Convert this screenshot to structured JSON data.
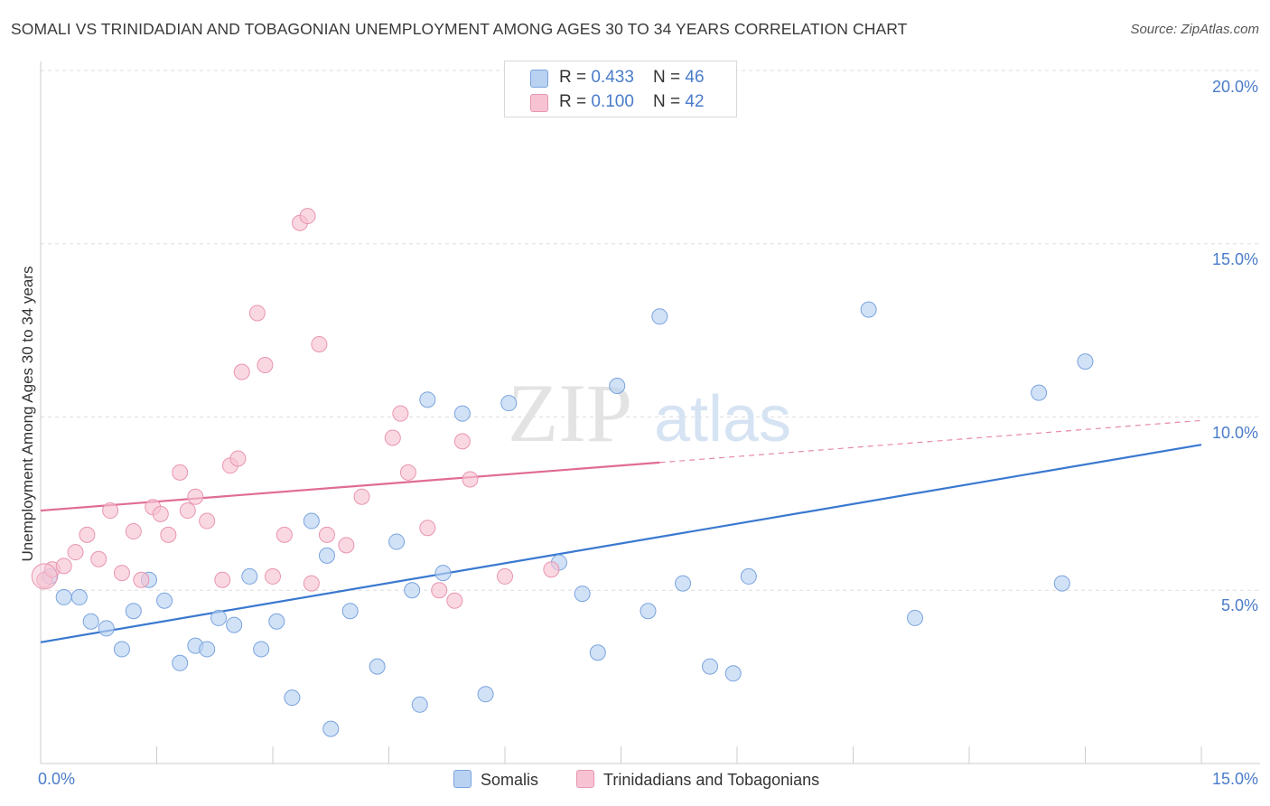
{
  "title": "SOMALI VS TRINIDADIAN AND TOBAGONIAN UNEMPLOYMENT AMONG AGES 30 TO 34 YEARS CORRELATION CHART",
  "source": "Source: ZipAtlas.com",
  "watermark": {
    "zip": "ZIP",
    "atlas": "atlas"
  },
  "legend": {
    "rows": [
      {
        "r_label": "R = ",
        "r_value": "0.433",
        "n_label": "N = ",
        "n_value": "46"
      },
      {
        "r_label": "R = ",
        "r_value": "0.100",
        "n_label": "N = ",
        "n_value": "42"
      }
    ]
  },
  "bottom_legend": {
    "somalis": "Somalis",
    "trinidadians": "Trinidadians and Tobagonians"
  },
  "colors": {
    "blue_fill": "#b9d2f2",
    "blue_stroke": "#7aa3de",
    "blue_line": "#3a78d0",
    "pink_fill": "#f7c3d3",
    "pink_stroke": "#e895b0",
    "pink_line": "#e06c95",
    "tick_text": "#4a7cc9",
    "grid": "#dddddd"
  },
  "chart_data": {
    "type": "scatter",
    "title": "SOMALI VS TRINIDADIAN AND TOBAGONIAN UNEMPLOYMENT AMONG AGES 30 TO 34 YEARS CORRELATION CHART",
    "xlabel": "",
    "ylabel": "Unemployment Among Ages 30 to 34 years",
    "xlim": [
      0,
      15
    ],
    "ylim": [
      0,
      20
    ],
    "x_tick_labels": [
      "0.0%",
      "15.0%"
    ],
    "y_ticks": [
      5,
      10,
      15,
      20
    ],
    "y_tick_labels": [
      "5.0%",
      "10.0%",
      "15.0%",
      "20.0%"
    ],
    "grid": true,
    "legend_position": "top-center",
    "series": [
      {
        "name": "Somalis",
        "r": 0.433,
        "n": 46,
        "trend": {
          "x0": 0,
          "y0": 3.5,
          "x1": 15,
          "y1": 9.2,
          "dashed_from": null
        },
        "points": [
          [
            0.12,
            5.4
          ],
          [
            0.3,
            4.8
          ],
          [
            0.5,
            4.8
          ],
          [
            0.65,
            4.1
          ],
          [
            0.85,
            3.9
          ],
          [
            1.05,
            3.3
          ],
          [
            1.2,
            4.4
          ],
          [
            1.4,
            5.3
          ],
          [
            1.6,
            4.7
          ],
          [
            1.8,
            2.9
          ],
          [
            2.0,
            3.4
          ],
          [
            2.15,
            3.3
          ],
          [
            2.3,
            4.2
          ],
          [
            2.5,
            4.0
          ],
          [
            2.7,
            5.4
          ],
          [
            2.85,
            3.3
          ],
          [
            3.05,
            4.1
          ],
          [
            3.25,
            1.9
          ],
          [
            3.5,
            7.0
          ],
          [
            3.7,
            6.0
          ],
          [
            3.75,
            1.0
          ],
          [
            4.0,
            4.4
          ],
          [
            4.35,
            2.8
          ],
          [
            4.6,
            6.4
          ],
          [
            4.8,
            5.0
          ],
          [
            4.9,
            1.7
          ],
          [
            5.0,
            10.5
          ],
          [
            5.2,
            5.5
          ],
          [
            5.45,
            10.1
          ],
          [
            5.75,
            2.0
          ],
          [
            6.05,
            10.4
          ],
          [
            6.7,
            5.8
          ],
          [
            7.0,
            4.9
          ],
          [
            7.2,
            3.2
          ],
          [
            7.45,
            10.9
          ],
          [
            7.85,
            4.4
          ],
          [
            8.0,
            12.9
          ],
          [
            8.3,
            5.2
          ],
          [
            8.65,
            2.8
          ],
          [
            8.95,
            2.6
          ],
          [
            9.15,
            5.4
          ],
          [
            10.7,
            13.1
          ],
          [
            11.3,
            4.2
          ],
          [
            12.9,
            10.7
          ],
          [
            13.2,
            5.2
          ],
          [
            13.5,
            11.6
          ]
        ]
      },
      {
        "name": "Trinidadians and Tobagonians",
        "r": 0.1,
        "n": 42,
        "trend": {
          "x0": 0,
          "y0": 7.3,
          "x1": 15,
          "y1": 9.9,
          "dashed_from": 8.0
        },
        "points": [
          [
            0.05,
            5.3
          ],
          [
            0.15,
            5.6
          ],
          [
            0.3,
            5.7
          ],
          [
            0.45,
            6.1
          ],
          [
            0.6,
            6.6
          ],
          [
            0.75,
            5.9
          ],
          [
            0.9,
            7.3
          ],
          [
            1.05,
            5.5
          ],
          [
            1.2,
            6.7
          ],
          [
            1.3,
            5.3
          ],
          [
            1.45,
            7.4
          ],
          [
            1.55,
            7.2
          ],
          [
            1.65,
            6.6
          ],
          [
            1.8,
            8.4
          ],
          [
            1.9,
            7.3
          ],
          [
            2.0,
            7.7
          ],
          [
            2.15,
            7.0
          ],
          [
            2.35,
            5.3
          ],
          [
            2.45,
            8.6
          ],
          [
            2.55,
            8.8
          ],
          [
            2.6,
            11.3
          ],
          [
            2.8,
            13.0
          ],
          [
            2.9,
            11.5
          ],
          [
            3.0,
            5.4
          ],
          [
            3.15,
            6.6
          ],
          [
            3.35,
            15.6
          ],
          [
            3.45,
            15.8
          ],
          [
            3.5,
            5.2
          ],
          [
            3.6,
            12.1
          ],
          [
            3.7,
            6.6
          ],
          [
            3.95,
            6.3
          ],
          [
            4.15,
            7.7
          ],
          [
            4.55,
            9.4
          ],
          [
            4.65,
            10.1
          ],
          [
            4.75,
            8.4
          ],
          [
            5.0,
            6.8
          ],
          [
            5.15,
            5.0
          ],
          [
            5.35,
            4.7
          ],
          [
            5.45,
            9.3
          ],
          [
            5.55,
            8.2
          ],
          [
            6.0,
            5.4
          ],
          [
            6.6,
            5.6
          ]
        ]
      }
    ]
  }
}
